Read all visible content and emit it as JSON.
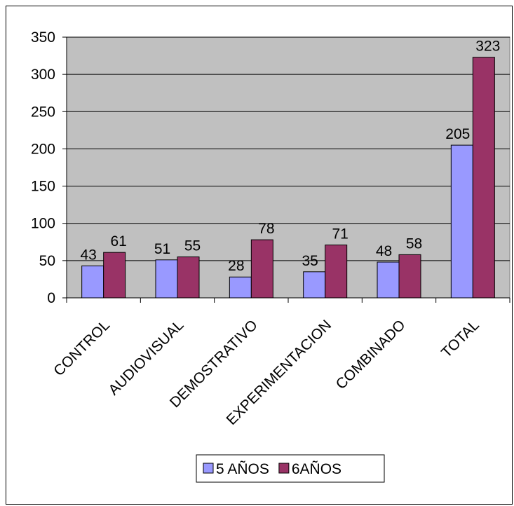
{
  "chart_data": {
    "type": "bar",
    "categories": [
      "CONTROL",
      "AUDIOVISUAL",
      "DEMOSTRATIVO",
      "EXPERIMENTACION",
      "COMBINADO",
      "TOTAL"
    ],
    "series": [
      {
        "name": "5 AÑOS",
        "values": [
          43,
          51,
          28,
          35,
          48,
          205
        ],
        "color": "#9999ff"
      },
      {
        "name": "6AÑOS",
        "values": [
          61,
          55,
          78,
          71,
          58,
          323
        ],
        "color": "#993366"
      }
    ],
    "ylim": [
      0,
      350
    ],
    "yticks": [
      0,
      50,
      100,
      150,
      200,
      250,
      300,
      350
    ],
    "plot_background": "#c0c0c0",
    "grid": true,
    "legend_position": "bottom"
  }
}
